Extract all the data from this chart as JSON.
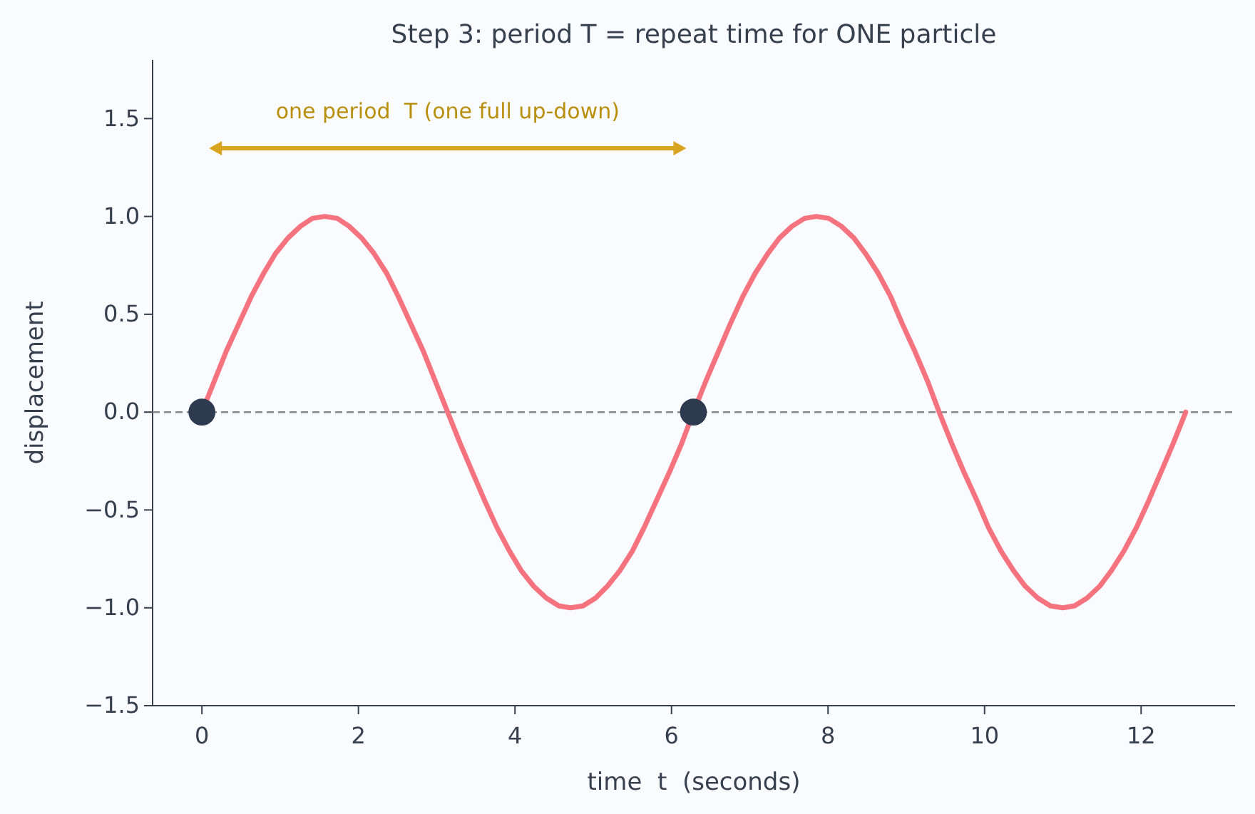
{
  "chart_data": {
    "type": "line",
    "title": "Step 3: period T = repeat time for ONE particle",
    "xlabel": "time  t  (seconds)",
    "ylabel": "displacement",
    "xlim": [
      -0.63,
      13.2
    ],
    "ylim": [
      -1.5,
      1.8
    ],
    "xticks": [
      0,
      2,
      4,
      6,
      8,
      10,
      12
    ],
    "yticks": [
      {
        "value": -1.5,
        "label": "−1.5"
      },
      {
        "value": -1,
        "label": "−1.0"
      },
      {
        "value": -0.5,
        "label": "−0.5"
      },
      {
        "value": 0,
        "label": "0.0"
      },
      {
        "value": 0.5,
        "label": "0.5"
      },
      {
        "value": 1,
        "label": "1.0"
      },
      {
        "value": 1.5,
        "label": "1.5"
      }
    ],
    "ref_lines": [
      {
        "axis": "y",
        "value": 0,
        "color": "#888888",
        "line_style": "dashed"
      }
    ],
    "annotations": [
      "one period  T (one full up-down)"
    ],
    "series": [
      {
        "color": "#f4737f",
        "marker": "none",
        "line_style": "solid",
        "x": [
          0,
          0.16,
          0.31,
          0.47,
          0.63,
          0.79,
          0.94,
          1.1,
          1.26,
          1.41,
          1.57,
          1.73,
          1.88,
          2.04,
          2.2,
          2.36,
          2.51,
          2.67,
          2.83,
          2.98,
          3.14,
          3.3,
          3.46,
          3.61,
          3.77,
          3.93,
          4.08,
          4.24,
          4.4,
          4.56,
          4.71,
          4.87,
          5.03,
          5.18,
          5.34,
          5.5,
          5.65,
          5.81,
          5.97,
          6.13,
          6.28,
          6.44,
          6.6,
          6.75,
          6.91,
          7.07,
          7.23,
          7.38,
          7.54,
          7.7,
          7.85,
          8.01,
          8.17,
          8.33,
          8.48,
          8.64,
          8.8,
          8.95,
          9.11,
          9.27,
          9.42,
          9.58,
          9.74,
          9.9,
          10.05,
          10.21,
          10.37,
          10.52,
          10.68,
          10.84,
          11,
          11.15,
          11.31,
          11.47,
          11.62,
          11.78,
          11.94,
          12.1,
          12.25,
          12.41,
          12.57
        ],
        "values": [
          0,
          0.16,
          0.31,
          0.45,
          0.59,
          0.71,
          0.81,
          0.89,
          0.95,
          0.99,
          1,
          0.99,
          0.95,
          0.89,
          0.81,
          0.71,
          0.59,
          0.45,
          0.31,
          0.16,
          0,
          -0.16,
          -0.31,
          -0.45,
          -0.59,
          -0.71,
          -0.81,
          -0.89,
          -0.95,
          -0.99,
          -1,
          -0.99,
          -0.95,
          -0.89,
          -0.81,
          -0.71,
          -0.59,
          -0.45,
          -0.31,
          -0.16,
          0,
          0.16,
          0.31,
          0.45,
          0.59,
          0.71,
          0.81,
          0.89,
          0.95,
          0.99,
          1,
          0.99,
          0.95,
          0.89,
          0.81,
          0.71,
          0.59,
          0.45,
          0.31,
          0.16,
          0,
          -0.16,
          -0.31,
          -0.45,
          -0.59,
          -0.71,
          -0.81,
          -0.89,
          -0.95,
          -0.99,
          -1,
          -0.99,
          -0.95,
          -0.89,
          -0.81,
          -0.71,
          -0.59,
          -0.45,
          -0.31,
          -0.16,
          0
        ]
      },
      {
        "type": "scatter",
        "color": "#2d3a4f",
        "marker": "circle",
        "x": [
          0,
          6.28
        ],
        "values": [
          0,
          0
        ]
      }
    ]
  }
}
